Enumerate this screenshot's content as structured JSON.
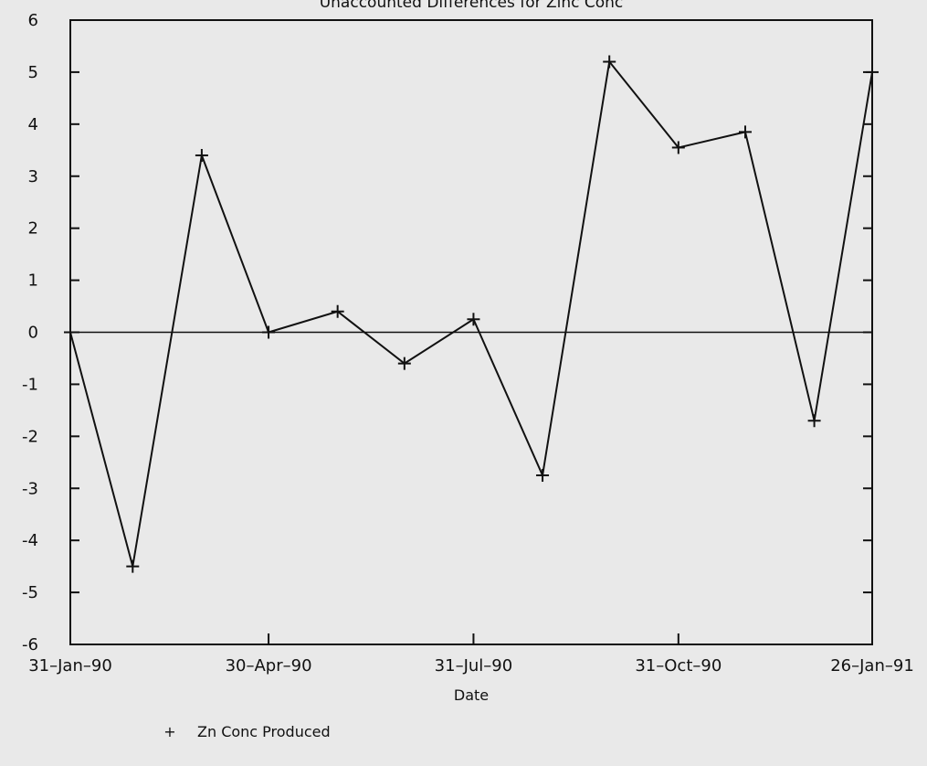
{
  "chart_data": {
    "type": "line",
    "title": "Unaccounted Differences for Zinc Conc",
    "xlabel": "Date",
    "ylabel": "",
    "ylim": [
      -6,
      6
    ],
    "yticks": [
      -6,
      -5,
      -4,
      -3,
      -2,
      -1,
      0,
      1,
      2,
      3,
      4,
      5,
      6
    ],
    "xticks": [
      "31-Jan-90",
      "30-Apr-90",
      "31-Jul-90",
      "31-Oct-90",
      "26-Jan-91"
    ],
    "grid": false,
    "zero_line": true,
    "legend_position": "bottom-left",
    "series": [
      {
        "name": "Zn Conc Produced",
        "marker": "+",
        "x": [
          "31-Jan-90",
          "28-Feb-90",
          "31-Mar-90",
          "30-Apr-90",
          "31-May-90",
          "30-Jun-90",
          "31-Jul-90",
          "31-Aug-90",
          "30-Sep-90",
          "31-Oct-90",
          "30-Nov-90",
          "31-Dec-90",
          "26-Jan-91"
        ],
        "values": [
          0.0,
          -4.5,
          3.4,
          0.0,
          0.4,
          -0.6,
          0.25,
          -2.75,
          5.2,
          3.55,
          3.85,
          -1.7,
          5.0
        ]
      }
    ],
    "colors": {
      "line": "#111111",
      "background": "#e9e9e9"
    }
  },
  "legend": {
    "symbol": "+",
    "label": "Zn Conc Produced"
  }
}
